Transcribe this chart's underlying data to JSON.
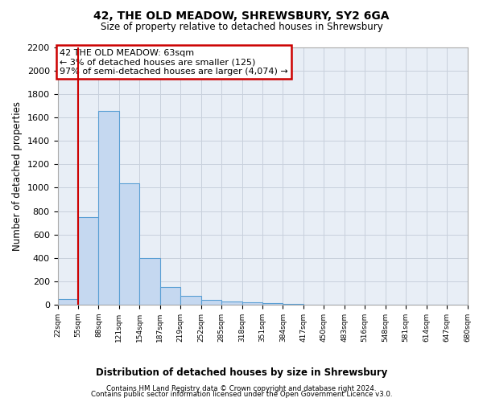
{
  "title": "42, THE OLD MEADOW, SHREWSBURY, SY2 6GA",
  "subtitle": "Size of property relative to detached houses in Shrewsbury",
  "xlabel": "Distribution of detached houses by size in Shrewsbury",
  "ylabel": "Number of detached properties",
  "bins": [
    "22sqm",
    "55sqm",
    "88sqm",
    "121sqm",
    "154sqm",
    "187sqm",
    "219sqm",
    "252sqm",
    "285sqm",
    "318sqm",
    "351sqm",
    "384sqm",
    "417sqm",
    "450sqm",
    "483sqm",
    "516sqm",
    "548sqm",
    "581sqm",
    "614sqm",
    "647sqm",
    "680sqm"
  ],
  "bar_values": [
    50,
    750,
    1660,
    1040,
    400,
    150,
    75,
    40,
    30,
    20,
    15,
    5,
    0,
    0,
    0,
    0,
    0,
    0,
    0,
    0
  ],
  "bar_color": "#c5d8f0",
  "bar_edge_color": "#5a9fd4",
  "vline_color": "#cc0000",
  "ylim": [
    0,
    2200
  ],
  "yticks": [
    0,
    200,
    400,
    600,
    800,
    1000,
    1200,
    1400,
    1600,
    1800,
    2000,
    2200
  ],
  "annotation_text": "42 THE OLD MEADOW: 63sqm\n← 3% of detached houses are smaller (125)\n97% of semi-detached houses are larger (4,074) →",
  "annotation_box_color": "#ffffff",
  "annotation_box_edge": "#cc0000",
  "footer1": "Contains HM Land Registry data © Crown copyright and database right 2024.",
  "footer2": "Contains public sector information licensed under the Open Government Licence v3.0.",
  "grid_color": "#c8d0dc",
  "background_color": "#e8eef6"
}
